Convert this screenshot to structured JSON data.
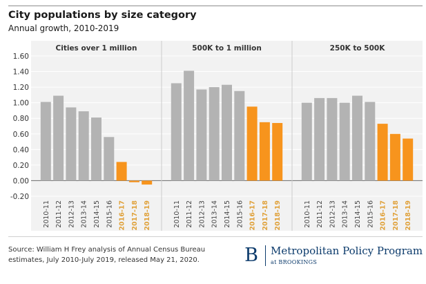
{
  "header": {
    "title": "City populations by size category",
    "subtitle": "Annual growth, 2010-2019"
  },
  "chart_data": {
    "type": "bar",
    "ylim": [
      -0.2,
      1.6
    ],
    "ytick_labels": [
      "1.60",
      "1.40",
      "1.20",
      "1.00",
      "0.80",
      "0.60",
      "0.40",
      "0.20",
      "0.00",
      "-0.20"
    ],
    "ytick_values": [
      1.6,
      1.4,
      1.2,
      1.0,
      0.8,
      0.6,
      0.4,
      0.2,
      0.0,
      -0.2
    ],
    "grid": true,
    "colors": {
      "estimate": "#b3b3b3",
      "highlight": "#f7941d",
      "highlight_label": "#e0a23c"
    },
    "categories": [
      "2010-11",
      "2011-12",
      "2012-13",
      "2013-14",
      "2014-15",
      "2015-16",
      "2016-17",
      "2017-18",
      "2018-19"
    ],
    "highlighted_categories": [
      "2016-17",
      "2017-18",
      "2018-19"
    ],
    "panels": [
      {
        "title": "Cities over 1 million",
        "values": [
          1.01,
          1.09,
          0.94,
          0.89,
          0.81,
          0.56,
          0.24,
          -0.02,
          -0.05
        ]
      },
      {
        "title": "500K to 1 million",
        "values": [
          1.25,
          1.41,
          1.17,
          1.2,
          1.23,
          1.15,
          0.95,
          0.75,
          0.74
        ]
      },
      {
        "title": "250K to 500K",
        "values": [
          1.0,
          1.06,
          1.06,
          1.0,
          1.09,
          1.01,
          0.73,
          0.6,
          0.54
        ]
      }
    ]
  },
  "footer": {
    "source_line1": "Source: William H Frey analysis of   Annual Census Bureau",
    "source_line2": "estimates, July 2010-July 2019, released May 21, 2020.",
    "brand_letter": "B",
    "brand_name": "Metropolitan Policy Program",
    "brand_sub": "at BROOKINGS"
  }
}
